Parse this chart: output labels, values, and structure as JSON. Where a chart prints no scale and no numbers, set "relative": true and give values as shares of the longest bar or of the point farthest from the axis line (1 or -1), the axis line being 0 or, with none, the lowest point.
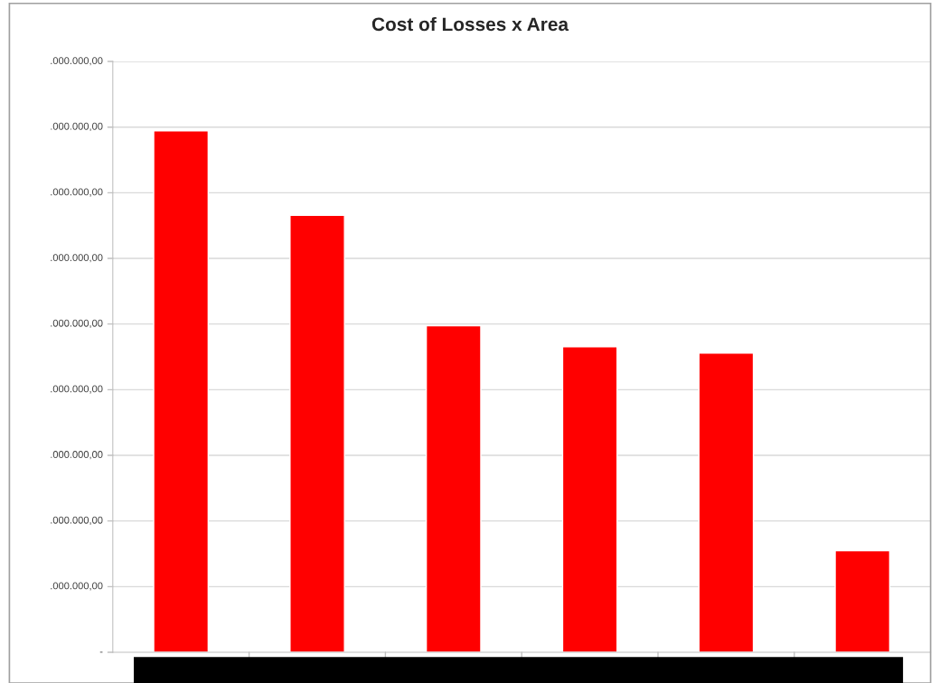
{
  "chart_data": {
    "type": "bar",
    "title": "Cost of Losses x Area",
    "categories": [
      null,
      null,
      null,
      null,
      null,
      null
    ],
    "values": [
      1,
      0.838,
      0.626,
      0.586,
      0.574,
      0.195
    ],
    "color": "#ff0000",
    "relative": true,
    "annotations": [
      "-",
      ".000.000,00",
      ".000.000,00",
      ".000.000,00",
      ".000.000,00",
      ".000.000,00",
      ".000.000,00",
      ".000.000,00",
      ".000.000,00",
      ".000.000,00"
    ],
    "grid": "y"
  }
}
